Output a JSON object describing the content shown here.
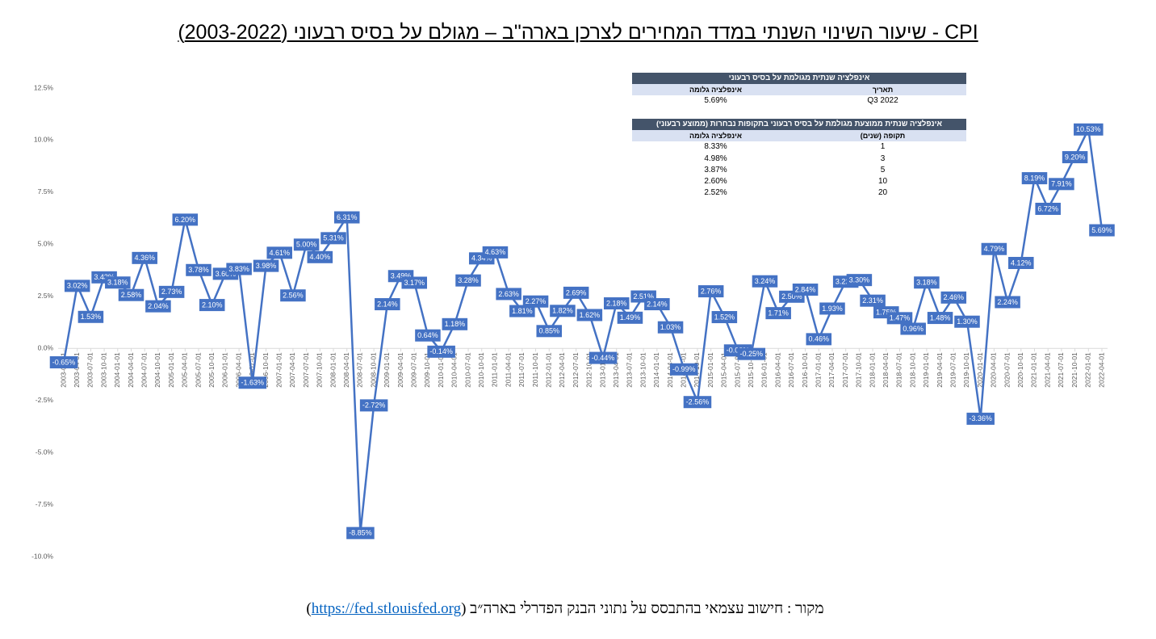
{
  "chart_data": {
    "type": "line",
    "title": "CPI - שיעור השינוי השנתי במדד המחירים לצרכן בארה\"ב – מגולם על בסיס רבעוני (2003-2022)",
    "categories": [
      "2003-01-01",
      "2003-04-01",
      "2003-07-01",
      "2003-10-01",
      "2004-01-01",
      "2004-04-01",
      "2004-07-01",
      "2004-10-01",
      "2005-01-01",
      "2005-04-01",
      "2005-07-01",
      "2005-10-01",
      "2006-01-01",
      "2006-04-01",
      "2006-07-01",
      "2006-10-01",
      "2007-01-01",
      "2007-04-01",
      "2007-07-01",
      "2007-10-01",
      "2008-01-01",
      "2008-04-01",
      "2008-07-01",
      "2008-10-01",
      "2009-01-01",
      "2009-04-01",
      "2009-07-01",
      "2009-10-01",
      "2010-01-01",
      "2010-04-01",
      "2010-07-01",
      "2010-10-01",
      "2011-01-01",
      "2011-04-01",
      "2011-07-01",
      "2011-10-01",
      "2012-01-01",
      "2012-04-01",
      "2012-07-01",
      "2012-10-01",
      "2013-01-01",
      "2013-04-01",
      "2013-07-01",
      "2013-10-01",
      "2014-01-01",
      "2014-04-01",
      "2014-07-01",
      "2014-10-01",
      "2015-01-01",
      "2015-04-01",
      "2015-07-01",
      "2015-10-01",
      "2016-01-01",
      "2016-04-01",
      "2016-07-01",
      "2016-10-01",
      "2017-01-01",
      "2017-04-01",
      "2017-07-01",
      "2017-10-01",
      "2018-01-01",
      "2018-04-01",
      "2018-07-01",
      "2018-10-01",
      "2019-01-01",
      "2019-04-01",
      "2019-07-01",
      "2019-10-01",
      "2020-01-01",
      "2020-04-01",
      "2020-07-01",
      "2020-10-01",
      "2021-01-01",
      "2021-04-01",
      "2021-07-01",
      "2021-10-01",
      "2022-01-01",
      "2022-04-01"
    ],
    "values": [
      -0.65,
      3.02,
      1.53,
      3.43,
      3.18,
      2.58,
      4.36,
      2.04,
      2.73,
      6.2,
      3.78,
      2.1,
      3.6,
      3.83,
      -1.63,
      3.98,
      4.61,
      2.56,
      5.0,
      4.4,
      5.31,
      6.31,
      -8.85,
      -2.72,
      2.14,
      3.49,
      3.17,
      0.64,
      -0.14,
      1.18,
      3.28,
      4.34,
      4.63,
      2.63,
      1.81,
      2.27,
      0.85,
      1.82,
      2.69,
      1.62,
      -0.44,
      2.18,
      1.49,
      2.51,
      2.14,
      1.03,
      -0.99,
      -2.56,
      2.76,
      1.52,
      -0.08,
      -0.25,
      3.24,
      1.71,
      2.5,
      2.84,
      0.46,
      1.93,
      3.22,
      3.3,
      2.31,
      1.75,
      1.47,
      0.96,
      3.18,
      1.48,
      2.46,
      1.3,
      -3.36,
      4.79,
      2.24,
      4.12,
      8.19,
      6.72,
      7.91,
      9.2,
      10.53,
      5.69
    ],
    "value_labels": [
      "-0.65%",
      "3.02%",
      "1.53%",
      "3.43%",
      "3.18%",
      "2.58%",
      "4.36%",
      "2.04%",
      "2.73%",
      "6.20%",
      "3.78%",
      "2.10%",
      "3.60%",
      "3.83%",
      "-1.63%",
      "3.98%",
      "4.61%",
      "2.56%",
      "5.00%",
      "4.40%",
      "5.31%",
      "6.31%",
      "-8.85%",
      "-2.72%",
      "2.14%",
      "3.49%",
      "3.17%",
      "0.64%",
      "-0.14%",
      "1.18%",
      "3.28%",
      "4.34%",
      "4.63%",
      "2.63%",
      "1.81%",
      "2.27%",
      "0.85%",
      "1.82%",
      "2.69%",
      "1.62%",
      "-0.44%",
      "2.18%",
      "1.49%",
      "2.51%",
      "2.14%",
      "1.03%",
      "-0.99%",
      "-2.56%",
      "2.76%",
      "1.52%",
      "-0.08%",
      "-0.25%",
      "3.24%",
      "1.71%",
      "2.50%",
      "2.84%",
      "0.46%",
      "1.93%",
      "3.22%",
      "3.30%",
      "2.31%",
      "1.75%",
      "1.47%",
      "0.96%",
      "3.18%",
      "1.48%",
      "2.46%",
      "1.30%",
      "-3.36%",
      "4.79%",
      "2.24%",
      "4.12%",
      "8.19%",
      "6.72%",
      "7.91%",
      "9.20%",
      "10.53%",
      "5.69%"
    ],
    "color": "#4472c4",
    "ylim": [
      -10,
      12.5
    ],
    "yticks": [
      {
        "value": 12.5,
        "label": "12.5%"
      },
      {
        "value": 10,
        "label": "10.0%"
      },
      {
        "value": 7.5,
        "label": "7.5%"
      },
      {
        "value": 5,
        "label": "5.0%"
      },
      {
        "value": 2.5,
        "label": "2.5%"
      },
      {
        "value": 0,
        "label": "0.0%"
      },
      {
        "value": -2.5,
        "label": "-2.5%"
      },
      {
        "value": -5,
        "label": "-5.0%"
      },
      {
        "value": -7.5,
        "label": "-7.5%"
      },
      {
        "value": -10,
        "label": "-10.0%"
      }
    ],
    "grid": false
  },
  "tables": [
    {
      "title": "אינפלציה שנתית מגולמת על בסיס רבעוני",
      "columns": [
        "תאריך",
        "אינפלציה גלומה"
      ],
      "rows": [
        [
          "Q3 2022",
          "5.69%"
        ]
      ]
    },
    {
      "title": "אינפלציה שנתית ממוצעת מגולמת על בסיס רבעוני בתקופות נבחרות (ממוצע רבעוני)",
      "columns": [
        "תקופה (שנים)",
        "אינפלציה גלומה"
      ],
      "rows": [
        [
          "1",
          "8.33%"
        ],
        [
          "3",
          "4.98%"
        ],
        [
          "5",
          "3.87%"
        ],
        [
          "10",
          "2.60%"
        ],
        [
          "20",
          "2.52%"
        ]
      ]
    }
  ],
  "source": {
    "text": "מקור : חישוב עצמאי בהתבסס על נתוני הבנק הפדרלי בארה״ב (",
    "link": "https://fed.stlouisfed.org",
    "text_end": ")"
  }
}
